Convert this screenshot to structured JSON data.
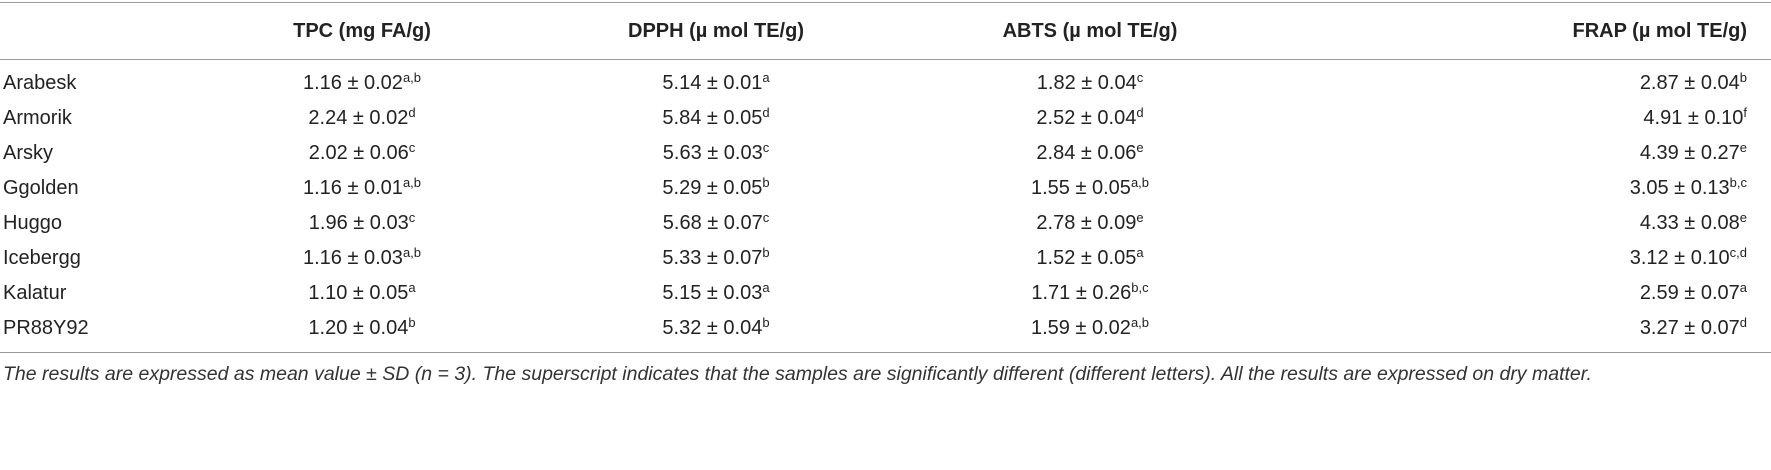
{
  "table": {
    "header": [
      "TPC (mg FA/g)",
      "DPPH (µ mol TE/g)",
      "ABTS (µ mol TE/g)",
      "FRAP (µ mol TE/g)"
    ],
    "rows": [
      {
        "name": "Arabesk",
        "cells": [
          {
            "value": "1.16 ± 0.02",
            "sup": "a,b"
          },
          {
            "value": "5.14 ± 0.01",
            "sup": "a"
          },
          {
            "value": "1.82 ± 0.04",
            "sup": "c"
          },
          {
            "value": "2.87 ± 0.04",
            "sup": "b"
          }
        ]
      },
      {
        "name": "Armorik",
        "cells": [
          {
            "value": "2.24 ± 0.02",
            "sup": "d"
          },
          {
            "value": "5.84 ± 0.05",
            "sup": "d"
          },
          {
            "value": "2.52 ± 0.04",
            "sup": "d"
          },
          {
            "value": "4.91 ± 0.10",
            "sup": "f"
          }
        ]
      },
      {
        "name": "Arsky",
        "cells": [
          {
            "value": "2.02 ± 0.06",
            "sup": "c"
          },
          {
            "value": "5.63 ± 0.03",
            "sup": "c"
          },
          {
            "value": "2.84 ± 0.06",
            "sup": "e"
          },
          {
            "value": "4.39 ± 0.27",
            "sup": "e"
          }
        ]
      },
      {
        "name": "Ggolden",
        "cells": [
          {
            "value": "1.16 ± 0.01",
            "sup": "a,b"
          },
          {
            "value": "5.29 ± 0.05",
            "sup": "b"
          },
          {
            "value": "1.55 ± 0.05",
            "sup": "a,b"
          },
          {
            "value": "3.05 ± 0.13",
            "sup": "b,c"
          }
        ]
      },
      {
        "name": "Huggo",
        "cells": [
          {
            "value": "1.96 ± 0.03",
            "sup": "c"
          },
          {
            "value": "5.68 ± 0.07",
            "sup": "c"
          },
          {
            "value": "2.78 ± 0.09",
            "sup": "e"
          },
          {
            "value": "4.33 ± 0.08",
            "sup": "e"
          }
        ]
      },
      {
        "name": "Icebergg",
        "cells": [
          {
            "value": "1.16 ± 0.03",
            "sup": "a,b"
          },
          {
            "value": "5.33 ± 0.07",
            "sup": "b"
          },
          {
            "value": "1.52 ± 0.05",
            "sup": "a"
          },
          {
            "value": "3.12 ± 0.10",
            "sup": "c,d"
          }
        ]
      },
      {
        "name": "Kalatur",
        "cells": [
          {
            "value": "1.10 ± 0.05",
            "sup": "a"
          },
          {
            "value": "5.15 ± 0.03",
            "sup": "a"
          },
          {
            "value": "1.71 ± 0.26",
            "sup": "b,c"
          },
          {
            "value": "2.59 ± 0.07",
            "sup": "a"
          }
        ]
      },
      {
        "name": "PR88Y92",
        "cells": [
          {
            "value": "1.20 ± 0.04",
            "sup": "b"
          },
          {
            "value": "5.32 ± 0.04",
            "sup": "b"
          },
          {
            "value": "1.59 ± 0.02",
            "sup": "a,b"
          },
          {
            "value": "3.27 ± 0.07",
            "sup": "d"
          }
        ]
      }
    ],
    "footnote": "The results are expressed as mean value ± SD (n = 3). The superscript indicates that the samples are significantly different (different letters). All the results are expressed on dry matter."
  }
}
